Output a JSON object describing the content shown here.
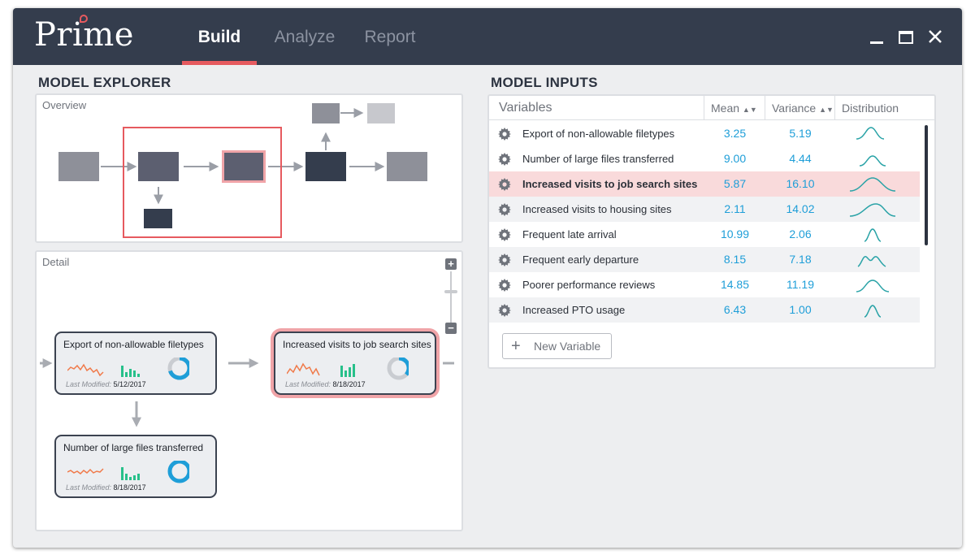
{
  "app": {
    "logo": "Prime",
    "tabs": [
      {
        "label": "Build",
        "active": true
      },
      {
        "label": "Analyze",
        "active": false
      },
      {
        "label": "Report",
        "active": false
      }
    ]
  },
  "explorer": {
    "title": "MODEL EXPLORER",
    "overview_label": "Overview",
    "detail_label": "Detail",
    "cards": [
      {
        "title": "Export of non-allowable filetypes",
        "modified_label": "Last Modified:",
        "modified_date": "5/12/2017"
      },
      {
        "title": "Increased visits to job search sites",
        "modified_label": "Last Modified:",
        "modified_date": "8/18/2017"
      },
      {
        "title": "Number of large files transferred",
        "modified_label": "Last Modified:",
        "modified_date": "8/18/2017"
      }
    ]
  },
  "inputs": {
    "title": "MODEL INPUTS",
    "columns": {
      "variables": "Variables",
      "mean": "Mean",
      "variance": "Variance",
      "distribution": "Distribution"
    },
    "rows": [
      {
        "name": "Export of non-allowable filetypes",
        "mean": "3.25",
        "variance": "5.19"
      },
      {
        "name": "Number of large files transferred",
        "mean": "9.00",
        "variance": "4.44"
      },
      {
        "name": "Increased visits to job search sites",
        "mean": "5.87",
        "variance": "16.10"
      },
      {
        "name": "Increased visits to housing sites",
        "mean": "2.11",
        "variance": "14.02"
      },
      {
        "name": "Frequent late arrival",
        "mean": "10.99",
        "variance": "2.06"
      },
      {
        "name": "Frequent early departure",
        "mean": "8.15",
        "variance": "7.18"
      },
      {
        "name": "Poorer performance reviews",
        "mean": "14.85",
        "variance": "11.19"
      },
      {
        "name": "Increased PTO usage",
        "mean": "6.43",
        "variance": "1.00"
      }
    ],
    "new_variable_label": "New Variable"
  },
  "colors": {
    "titlebar": "#343d4d",
    "accent": "#e65a5f",
    "number": "#1e9ed8",
    "teal": "#2aa3a7",
    "orange": "#f07a4a",
    "green": "#27c08a"
  }
}
